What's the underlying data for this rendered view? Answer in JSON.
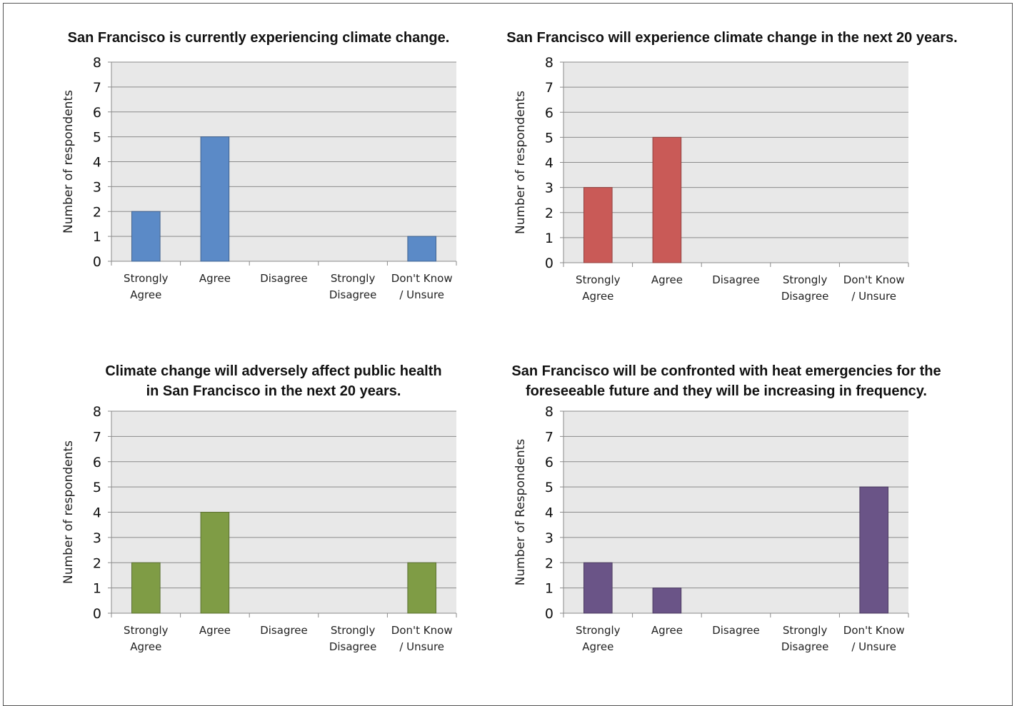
{
  "chart_data": [
    {
      "type": "bar",
      "title": [
        "San Francisco is currently experiencing climate change."
      ],
      "ylabel": "Number of respondents",
      "categories": [
        [
          "Strongly",
          "Agree"
        ],
        [
          "Agree"
        ],
        [
          "Disagree"
        ],
        [
          "Strongly",
          "Disagree"
        ],
        [
          "Don't Know",
          "/ Unsure"
        ]
      ],
      "values": [
        2,
        5,
        0,
        0,
        1
      ],
      "ylim": [
        0,
        8
      ],
      "yticks": [
        "0",
        "1",
        "2",
        "3",
        "4",
        "5",
        "6",
        "7",
        "8"
      ],
      "color": "#5b8ac7",
      "grid": true
    },
    {
      "type": "bar",
      "title": [
        "San Francisco will experience climate change in the next 20 years."
      ],
      "ylabel": "Number of respondents",
      "categories": [
        [
          "Strongly",
          "Agree"
        ],
        [
          "Agree"
        ],
        [
          "Disagree"
        ],
        [
          "Strongly",
          "Disagree"
        ],
        [
          "Don't Know",
          "/ Unsure"
        ]
      ],
      "values": [
        3,
        5,
        0,
        0,
        0
      ],
      "ylim": [
        0,
        8
      ],
      "yticks": [
        "0",
        "1",
        "2",
        "3",
        "4",
        "5",
        "6",
        "7",
        "8"
      ],
      "color": "#c95a57",
      "grid": true
    },
    {
      "type": "bar",
      "title": [
        "Climate change will adversely affect public health",
        "in San Francisco in the next 20 years."
      ],
      "ylabel": "Number of respondents",
      "categories": [
        [
          "Strongly",
          "Agree"
        ],
        [
          "Agree"
        ],
        [
          "Disagree"
        ],
        [
          "Strongly",
          "Disagree"
        ],
        [
          "Don't Know",
          "/ Unsure"
        ]
      ],
      "values": [
        2,
        4,
        0,
        0,
        2
      ],
      "ylim": [
        0,
        8
      ],
      "yticks": [
        "0",
        "1",
        "2",
        "3",
        "4",
        "5",
        "6",
        "7",
        "8"
      ],
      "color": "#7f9c45",
      "grid": true
    },
    {
      "type": "bar",
      "title": [
        "San Francisco will be confronted with heat emergencies for the",
        "foreseeable future and they will be increasing in frequency."
      ],
      "ylabel": "Number of Respondents",
      "categories": [
        [
          "Strongly",
          "Agree"
        ],
        [
          "Agree"
        ],
        [
          "Disagree"
        ],
        [
          "Strongly",
          "Disagree"
        ],
        [
          "Don't Know",
          "/ Unsure"
        ]
      ],
      "values": [
        2,
        1,
        0,
        0,
        5
      ],
      "ylim": [
        0,
        8
      ],
      "yticks": [
        "0",
        "1",
        "2",
        "3",
        "4",
        "5",
        "6",
        "7",
        "8"
      ],
      "color": "#6a5487",
      "grid": true
    }
  ]
}
